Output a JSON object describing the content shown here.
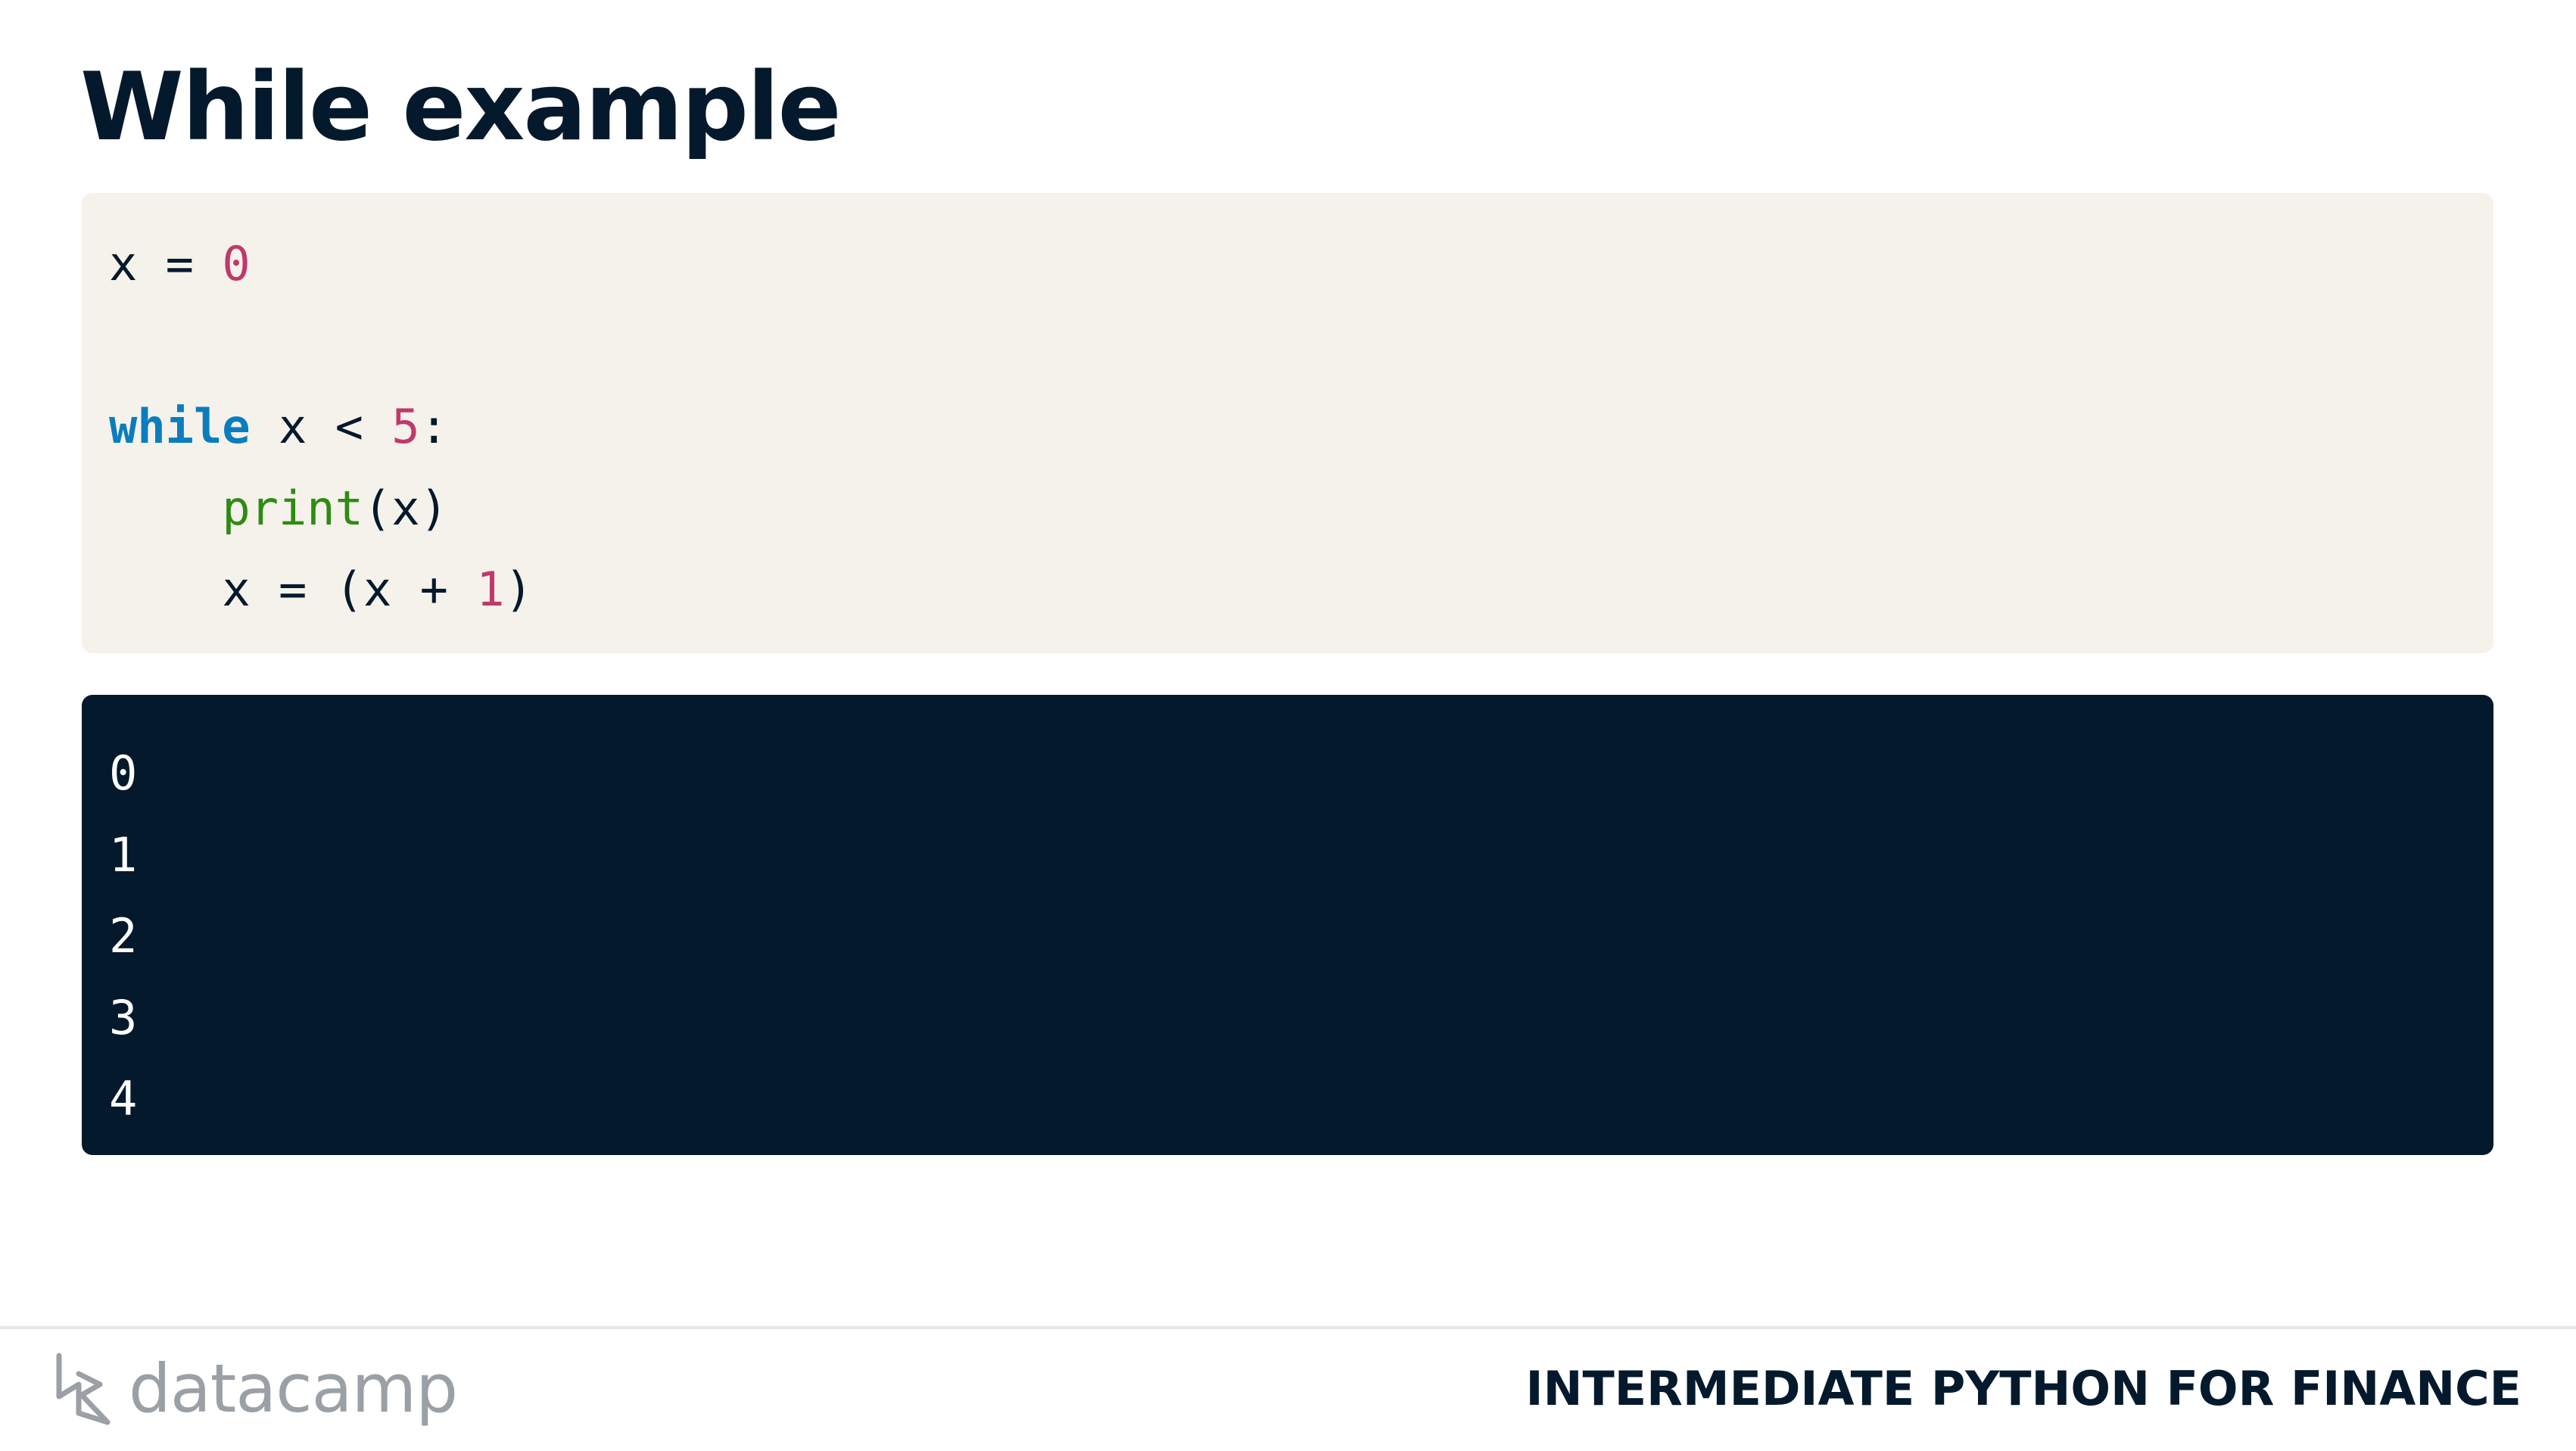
{
  "slide": {
    "title": "While example"
  },
  "code": {
    "line1": {
      "var": "x",
      "op": " = ",
      "value": "0"
    },
    "line3": {
      "keyword": "while",
      "cond_var": " x < ",
      "cond_value": "5",
      "colon": ":"
    },
    "line4": {
      "indent": "    ",
      "func": "print",
      "args": "(x)"
    },
    "line5": {
      "indent": "    ",
      "expr_start": "x = (x + ",
      "value": "1",
      "expr_end": ")"
    }
  },
  "output": {
    "lines": [
      "0",
      "1",
      "2",
      "3",
      "4"
    ]
  },
  "footer": {
    "logo_text": "datacamp",
    "course_name": "INTERMEDIATE PYTHON FOR FINANCE"
  },
  "colors": {
    "title": "#05192D",
    "code_background": "#F5F2EB",
    "output_background": "#05192D",
    "keyword": "#0B7DBE",
    "number": "#C0396B",
    "function": "#2E8B12",
    "logo": "#9AA0A6"
  },
  "icons": {
    "logo": "datacamp-logo-icon"
  }
}
